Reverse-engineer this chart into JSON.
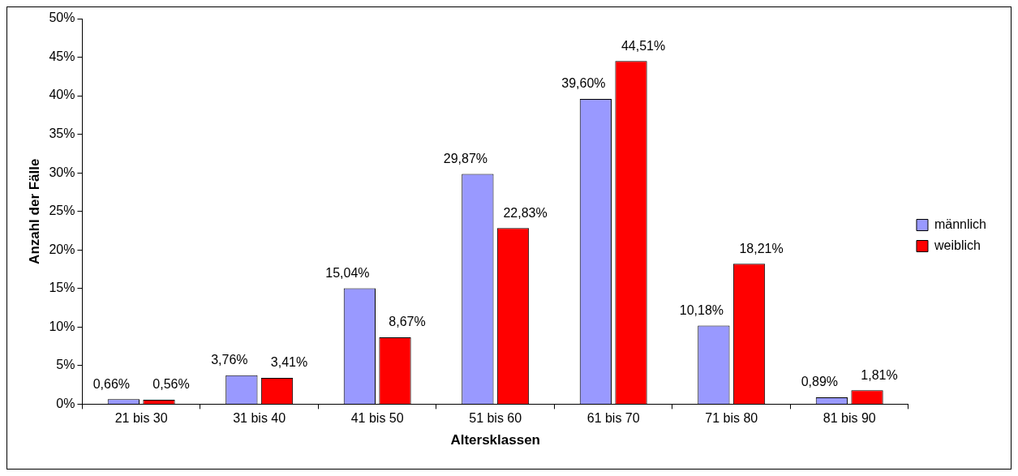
{
  "chart_data": {
    "type": "bar",
    "xlabel": "Altersklassen",
    "ylabel": "Anzahl der Fälle",
    "categories": [
      "21 bis 30",
      "31 bis 40",
      "41 bis 50",
      "51 bis 60",
      "61 bis 70",
      "71 bis 80",
      "81 bis 90"
    ],
    "series": [
      {
        "name": "männlich",
        "color": "#9999ff",
        "values": [
          0.66,
          3.76,
          15.04,
          29.87,
          39.6,
          10.18,
          0.89
        ],
        "value_labels": [
          "0,66%",
          "3,76%",
          "15,04%",
          "29,87%",
          "39,60%",
          "10,18%",
          "0,89%"
        ]
      },
      {
        "name": "weiblich",
        "color": "#ff0000",
        "values": [
          0.56,
          3.41,
          8.67,
          22.83,
          44.51,
          18.21,
          1.81
        ],
        "value_labels": [
          "0,56%",
          "3,41%",
          "8,67%",
          "22,83%",
          "44,51%",
          "18,21%",
          "1,81%"
        ]
      }
    ],
    "ylim": [
      0,
      50
    ],
    "yticks": [
      {
        "value": 0,
        "label": "0%"
      },
      {
        "value": 5,
        "label": "5%"
      },
      {
        "value": 10,
        "label": "10%"
      },
      {
        "value": 15,
        "label": "15%"
      },
      {
        "value": 20,
        "label": "20%"
      },
      {
        "value": 25,
        "label": "25%"
      },
      {
        "value": 30,
        "label": "30%"
      },
      {
        "value": 35,
        "label": "35%"
      },
      {
        "value": 40,
        "label": "40%"
      },
      {
        "value": 45,
        "label": "45%"
      },
      {
        "value": 50,
        "label": "50%"
      }
    ],
    "grid": false,
    "legend": "right"
  }
}
